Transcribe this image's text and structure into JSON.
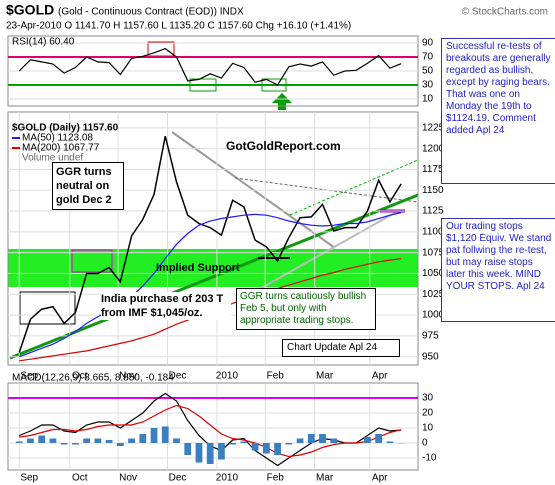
{
  "header": {
    "symbol": "$GOLD",
    "name": "(Gold - Continuous Contract (EOD)) INDX",
    "source": "© StockCharts.com",
    "quote": "23-Apr-2010  O 1141.70  H 1157.60  L 1135.20  C 1157.60  Chg +16.10 (+1.41%)"
  },
  "notes": [
    "Successful re-tests of breakouts are generally regarded as bullish, except by raging bears. That was one on Monday the 19th to $1124.19. Comment added Apl 24",
    "Our trading stops $1,120 Equiv. We stand pat follwing the re-test, but may raise stops later this week. MIND YOUR STOPS.  Apl 24"
  ],
  "chart_data": [
    {
      "type": "line",
      "title": "RSI(14) 60.40",
      "ylim": [
        0,
        100
      ],
      "yticks": [
        90,
        70,
        50,
        30,
        10
      ],
      "xlim": [
        -1,
        35.5
      ],
      "reference_lines": [
        {
          "value": 70,
          "color": "#e0006e"
        },
        {
          "value": 30,
          "color": "#00a000"
        }
      ],
      "series": [
        {
          "color": "#000000",
          "values": [
            50,
            66,
            63,
            60,
            47,
            55,
            70,
            63,
            62,
            45,
            68,
            71,
            76,
            82,
            70,
            36,
            38,
            46,
            40,
            61,
            55,
            34,
            38,
            30,
            56,
            60,
            57,
            63,
            44,
            50,
            51,
            61,
            72,
            54,
            60.4
          ]
        }
      ]
    },
    {
      "type": "line",
      "ylim": [
        940,
        1244
      ],
      "xlim": [
        -1,
        35.5
      ],
      "grid": true,
      "yticks": [
        1225,
        1200,
        1175,
        1150,
        1125,
        1100,
        1075,
        1050,
        1025,
        1000,
        975,
        950
      ],
      "xticks": [
        {
          "value": 0,
          "label": "Sep"
        },
        {
          "value": 4.5,
          "label": "Oct"
        },
        {
          "value": 8.8,
          "label": "Nov"
        },
        {
          "value": 13.2,
          "label": "Dec"
        },
        {
          "value": 17.6,
          "label": "2010"
        },
        {
          "value": 21.9,
          "label": "Feb"
        },
        {
          "value": 26.3,
          "label": "Mar"
        },
        {
          "value": 31.2,
          "label": "Apr"
        }
      ],
      "series": [
        {
          "name": "$GOLD (Daily) 1157.60",
          "color": "#000000",
          "values": [
            955,
            995,
            1007,
            1010,
            990,
            1003,
            1050,
            1050,
            1057,
            1040,
            1095,
            1115,
            1145,
            1215,
            1160,
            1120,
            1110,
            1105,
            1096,
            1138,
            1130,
            1090,
            1082,
            1065,
            1093,
            1117,
            1118,
            1133,
            1101,
            1105,
            1105,
            1125,
            1162,
            1136,
            1157.6
          ]
        },
        {
          "name": "MA(50) 1123.08",
          "color": "#1a1aff",
          "values": [
            950,
            955,
            960,
            965,
            972,
            980,
            990,
            998,
            1005,
            1012,
            1022,
            1035,
            1050,
            1068,
            1085,
            1098,
            1108,
            1113,
            1116,
            1118,
            1120,
            1121,
            1120,
            1117,
            1113,
            1110,
            1108,
            1107,
            1108,
            1110,
            1110,
            1112,
            1116,
            1120,
            1123.08
          ]
        },
        {
          "name": "MA(200) 1067.77",
          "color": "#e00000",
          "values": [
            945,
            947,
            949,
            951,
            953,
            955,
            957,
            960,
            963,
            966,
            969,
            973,
            977,
            983,
            989,
            994,
            999,
            1004,
            1009,
            1014,
            1019,
            1024,
            1028,
            1032,
            1036,
            1040,
            1044,
            1048,
            1051,
            1055,
            1058,
            1061,
            1064,
            1066,
            1067.77
          ]
        }
      ],
      "legend_extra": "Volume undef",
      "annotations": [
        "GotGoldReport.com",
        "GGR turns neutral on gold Dec 2",
        "Implied Support",
        "India purchase of 203 T from IMF $1,045/oz.",
        "GGR turns cautiously bullish Feb 5, but only with appropriate trading stops.",
        "Chart Update Apl 24"
      ]
    },
    {
      "type": "line",
      "title": "MACD(12,26,9) 8.665, 8.850, -0.184",
      "ylim": [
        -18,
        40
      ],
      "yticks": [
        30,
        20,
        10,
        0,
        -10
      ],
      "xlim": [
        -1,
        35.5
      ],
      "reference_lines": [
        {
          "value": 30,
          "color": "#e000e0"
        }
      ],
      "xticks": [
        {
          "value": 0,
          "label": "Sep"
        },
        {
          "value": 4.5,
          "label": "Oct"
        },
        {
          "value": 8.8,
          "label": "Nov"
        },
        {
          "value": 13.2,
          "label": "Dec"
        },
        {
          "value": 17.6,
          "label": "2010"
        },
        {
          "value": 21.9,
          "label": "Feb"
        },
        {
          "value": 26.3,
          "label": "Mar"
        },
        {
          "value": 31.2,
          "label": "Apr"
        }
      ],
      "series": [
        {
          "color": "#000000",
          "values": [
            5,
            8,
            12,
            12,
            8,
            7,
            12,
            14,
            14,
            10,
            15,
            20,
            28,
            33,
            28,
            15,
            5,
            -2,
            -5,
            2,
            3,
            -5,
            -10,
            -15,
            -10,
            -5,
            0,
            3,
            2,
            0,
            0,
            5,
            10,
            8,
            8.665
          ]
        },
        {
          "color": "#e00000",
          "values": [
            4,
            5,
            7,
            9,
            9,
            8,
            9,
            11,
            12,
            12,
            12,
            14,
            18,
            22,
            25,
            23,
            18,
            12,
            6,
            3,
            2,
            0,
            -3,
            -7,
            -9,
            -8,
            -6,
            -3,
            -1,
            0,
            0,
            1,
            4,
            7,
            8.85
          ]
        },
        {
          "color": "#3a7fc0",
          "histogram": true,
          "values": [
            1,
            3,
            5,
            3,
            -1,
            -1,
            3,
            3,
            2,
            -2,
            3,
            6,
            10,
            11,
            3,
            -8,
            -13,
            -14,
            -11,
            -1,
            1,
            -5,
            -7,
            -8,
            -1,
            3,
            6,
            6,
            3,
            0,
            0,
            4,
            6,
            1,
            -0.184
          ]
        }
      ]
    }
  ]
}
